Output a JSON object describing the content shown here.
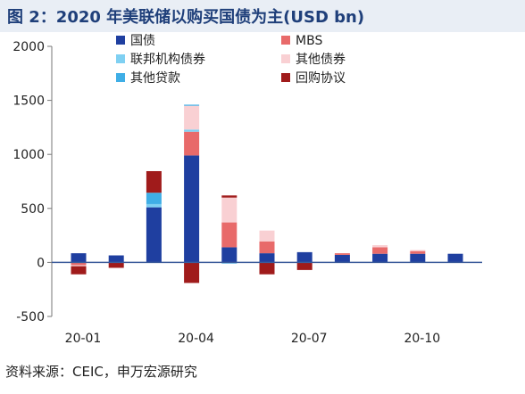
{
  "title": "图 2：2020 年美联储以购买国债为主(USD bn)",
  "source": "资料来源：CEIC，申万宏源研究",
  "chart_data": {
    "type": "bar",
    "stacked": true,
    "ylim": [
      -500,
      2000
    ],
    "yticks": [
      "2000",
      "1500",
      "1000",
      "500",
      "0",
      "-500"
    ],
    "ytick_values": [
      2000,
      1500,
      1000,
      500,
      0,
      -500
    ],
    "xtick_labels": [
      "20-01",
      "20-04",
      "20-07",
      "20-10"
    ],
    "xtick_positions": [
      0,
      3,
      6,
      9
    ],
    "legend_placement": "top",
    "series": [
      {
        "name": "国债",
        "color": "#1f3fa0",
        "values": [
          85,
          65,
          510,
          990,
          140,
          85,
          95,
          70,
          80,
          80,
          80
        ]
      },
      {
        "name": "MBS",
        "color": "#e86a6a",
        "values": [
          -25,
          0,
          0,
          220,
          230,
          110,
          0,
          15,
          60,
          25,
          0
        ]
      },
      {
        "name": "联邦机构债券",
        "color": "#7fd0f2",
        "values": [
          0,
          0,
          30,
          20,
          0,
          0,
          0,
          0,
          0,
          0,
          0
        ]
      },
      {
        "name": "其他债券",
        "color": "#f9d0d3",
        "values": [
          -10,
          0,
          0,
          220,
          230,
          100,
          0,
          0,
          20,
          10,
          0
        ]
      },
      {
        "name": "其他贷款",
        "color": "#3faee6",
        "values": [
          0,
          0,
          105,
          10,
          -10,
          0,
          0,
          0,
          0,
          0,
          0
        ]
      },
      {
        "name": "回购协议",
        "color": "#a01b1b",
        "values": [
          -75,
          -50,
          200,
          -190,
          20,
          -110,
          -70,
          -5,
          0,
          0,
          0
        ]
      }
    ]
  }
}
